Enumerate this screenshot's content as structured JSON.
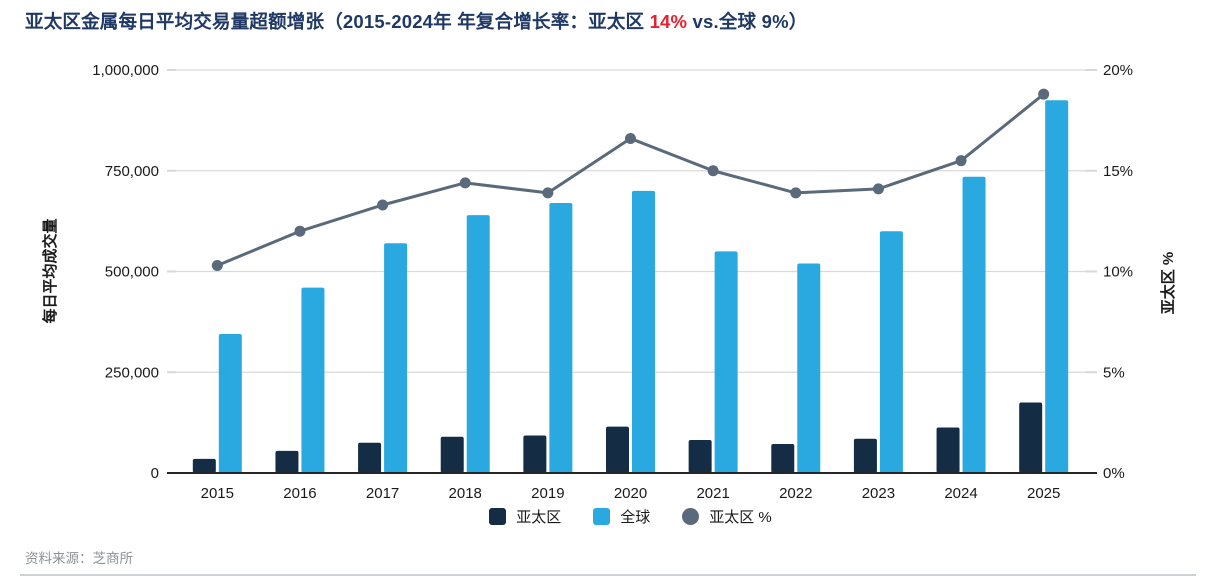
{
  "title": {
    "part1": "亚太区金属每日平均交易量超额增张（2015-2024年 年复合增长率：亚太区 ",
    "highlight": "14%",
    "part2": " vs.全球 9%）"
  },
  "colors": {
    "title": "#1f3864",
    "highlight_red": "#e8212e",
    "bar_apac": "#152c45",
    "bar_global": "#29a9e0",
    "line_apac_pct": "#5a6a7a",
    "grid": "#d9d9d9",
    "axis": "#262626",
    "text": "#1a1a1a",
    "source_text": "#8c9296",
    "bottom_rule": "#ccd2d5"
  },
  "chart_data": {
    "type": "bar",
    "title": "亚太区金属每日平均交易量超额增张（2015-2024年 年复合增长率：亚太区 14% vs.全球 9%）",
    "categories": [
      "2015",
      "2016",
      "2017",
      "2018",
      "2019",
      "2020",
      "2021",
      "2022",
      "2023",
      "2024",
      "2025"
    ],
    "series": [
      {
        "name": "亚太区",
        "type": "bar",
        "axis": "left",
        "color": "#152c45",
        "values": [
          35000,
          55000,
          75000,
          90000,
          93000,
          115000,
          82000,
          72000,
          85000,
          113000,
          175000
        ]
      },
      {
        "name": "全球",
        "type": "bar",
        "axis": "left",
        "color": "#29a9e0",
        "values": [
          345000,
          460000,
          570000,
          640000,
          670000,
          700000,
          550000,
          520000,
          600000,
          735000,
          925000
        ]
      },
      {
        "name": "亚太区 %",
        "type": "line",
        "axis": "right",
        "color": "#5a6a7a",
        "values": [
          10.3,
          12.0,
          13.3,
          14.4,
          13.9,
          16.6,
          15.0,
          13.9,
          14.1,
          15.5,
          18.8
        ]
      }
    ],
    "left_axis": {
      "label": "每日平均成交量",
      "min": 0,
      "max": 1000000,
      "ticks": [
        "0",
        "250,000",
        "500,000",
        "750,000",
        "1,000,000"
      ]
    },
    "right_axis": {
      "label": "亚太区 %",
      "min": 0,
      "max": 20,
      "ticks": [
        "0%",
        "5%",
        "10%",
        "15%",
        "20%"
      ]
    },
    "grid": true,
    "legend_position": "bottom"
  },
  "footer": {
    "source": "资料来源：芝商所"
  }
}
